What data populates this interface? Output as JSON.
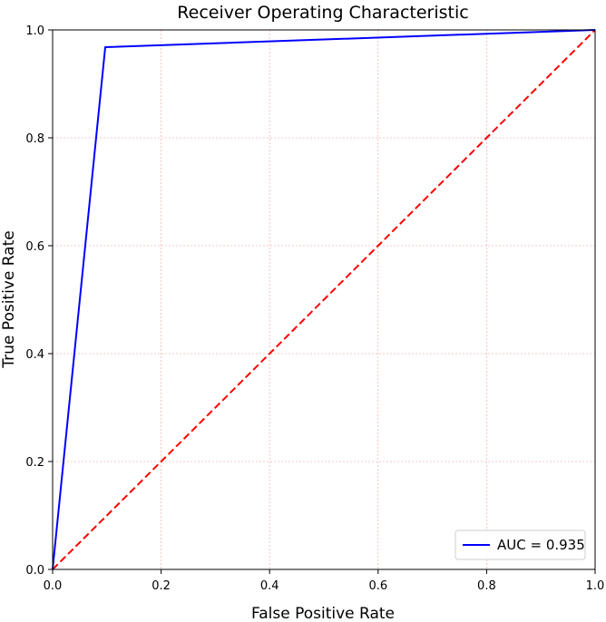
{
  "chart_data": {
    "type": "line",
    "title": "Receiver Operating Characteristic",
    "xlabel": "False Positive Rate",
    "ylabel": "True Positive Rate",
    "xlim": [
      0,
      1
    ],
    "ylim": [
      0,
      1
    ],
    "grid": true,
    "legend_position": "lower-right",
    "x_ticks": [
      "0.0",
      "0.2",
      "0.4",
      "0.6",
      "0.8",
      "1.0"
    ],
    "y_ticks": [
      "0.0",
      "0.2",
      "0.4",
      "0.6",
      "0.8",
      "1.0"
    ],
    "series": [
      {
        "name": "AUC = 0.935",
        "color": "#0000ff",
        "line_style": "solid",
        "x": [
          0.0,
          0.097,
          1.0
        ],
        "y": [
          0.0,
          0.968,
          1.0
        ]
      },
      {
        "color": "#ff0000",
        "line_style": "dashed",
        "x": [
          0.0,
          1.0
        ],
        "y": [
          0.0,
          1.0
        ]
      }
    ],
    "grid_color": "#f4b5b5",
    "axes_color": "#000000"
  }
}
